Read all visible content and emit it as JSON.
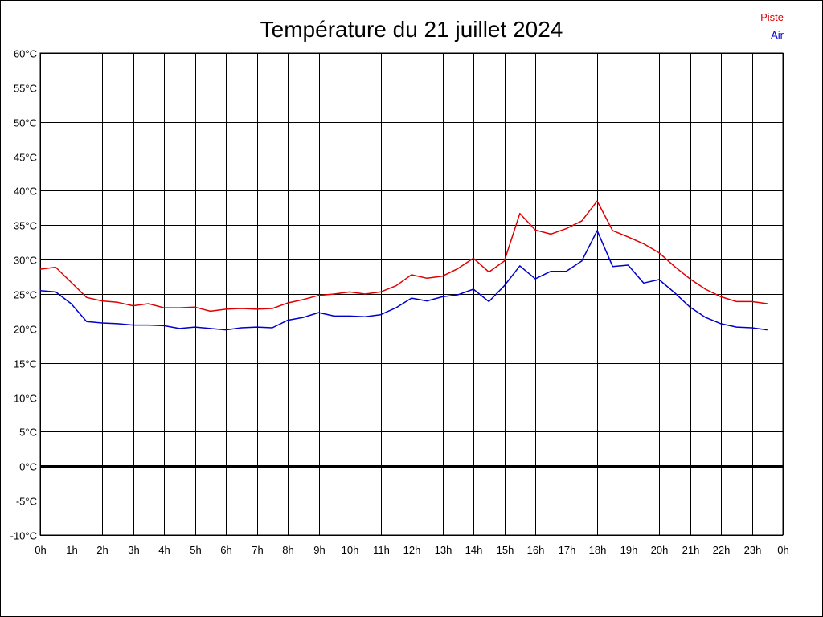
{
  "chart_data": {
    "type": "line",
    "title": "Température du 21 juillet 2024",
    "xlabel": "",
    "ylabel": "",
    "x_tick_labels": [
      "0h",
      "1h",
      "2h",
      "3h",
      "4h",
      "5h",
      "6h",
      "7h",
      "8h",
      "9h",
      "10h",
      "11h",
      "12h",
      "13h",
      "14h",
      "15h",
      "16h",
      "17h",
      "18h",
      "19h",
      "20h",
      "21h",
      "22h",
      "23h",
      "0h"
    ],
    "y_tick_labels": [
      "60°C",
      "55°C",
      "50°C",
      "45°C",
      "40°C",
      "35°C",
      "30°C",
      "25°C",
      "20°C",
      "15°C",
      "10°C",
      "5°C",
      "0°C",
      "-5°C",
      "-10°C"
    ],
    "xlim": [
      0,
      24
    ],
    "ylim": [
      -10,
      60
    ],
    "grid": true,
    "zero_line": true,
    "legend_position": "top-right",
    "x": [
      0,
      0.5,
      1,
      1.5,
      2,
      2.5,
      3,
      3.5,
      4,
      4.5,
      5,
      5.5,
      6,
      6.5,
      7,
      7.5,
      8,
      8.5,
      9,
      9.5,
      10,
      10.5,
      11,
      11.5,
      12,
      12.5,
      13,
      13.5,
      14,
      14.5,
      15,
      15.5,
      16,
      16.5,
      17,
      17.5,
      18,
      18.5,
      19,
      19.5,
      20,
      20.5,
      21,
      21.5,
      22,
      22.5,
      23,
      23.5
    ],
    "series": [
      {
        "name": "Piste",
        "color": "#e00000",
        "values": [
          28.6,
          28.9,
          26.7,
          24.5,
          24.0,
          23.8,
          23.3,
          23.6,
          23.0,
          23.0,
          23.1,
          22.5,
          22.8,
          22.9,
          22.8,
          22.9,
          23.7,
          24.2,
          24.8,
          25.0,
          25.3,
          25.0,
          25.3,
          26.2,
          27.8,
          27.3,
          27.6,
          28.7,
          30.2,
          28.2,
          29.8,
          36.7,
          34.3,
          33.7,
          34.5,
          35.6,
          38.5,
          34.2,
          33.3,
          32.3,
          31.0,
          29.0,
          27.2,
          25.7,
          24.6,
          23.9,
          23.9,
          23.6
        ]
      },
      {
        "name": "Air",
        "color": "#0000cc",
        "values": [
          25.5,
          25.3,
          23.6,
          21.0,
          20.8,
          20.7,
          20.5,
          20.5,
          20.4,
          20.0,
          20.2,
          20.0,
          19.8,
          20.1,
          20.2,
          20.1,
          21.2,
          21.6,
          22.3,
          21.8,
          21.8,
          21.7,
          22.0,
          23.0,
          24.4,
          24.0,
          24.6,
          24.9,
          25.7,
          23.9,
          26.2,
          29.1,
          27.2,
          28.3,
          28.3,
          29.8,
          34.2,
          29.0,
          29.2,
          26.6,
          27.1,
          25.2,
          23.1,
          21.6,
          20.7,
          20.2,
          20.1,
          19.8
        ]
      }
    ]
  }
}
